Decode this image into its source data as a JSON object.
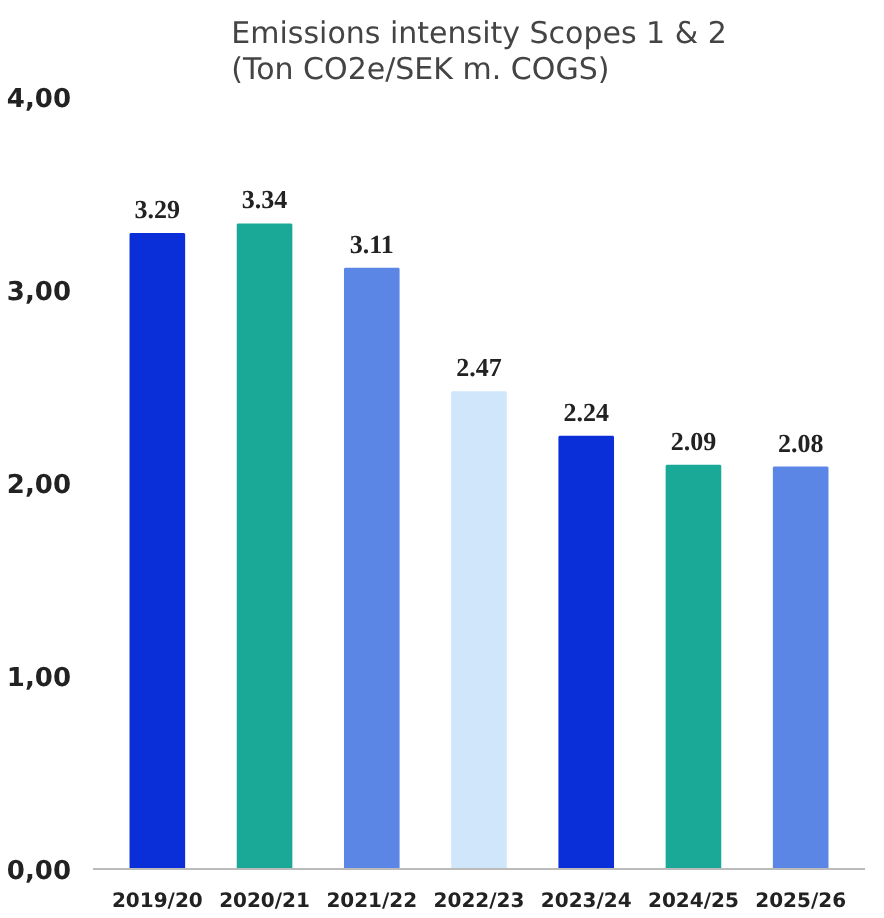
{
  "chart_data": {
    "type": "bar",
    "title": "Emissions intensity Scopes 1 & 2\n(Ton CO2e/SEK m. COGS)",
    "categories": [
      "2019/20",
      "2020/21",
      "2021/22",
      "2022/23",
      "2023/24",
      "2024/25",
      "2025/26"
    ],
    "values": [
      3.29,
      3.34,
      3.11,
      2.47,
      2.24,
      2.09,
      2.08
    ],
    "colors": [
      "#0a2ed8",
      "#1aa897",
      "#5b86e6",
      "#d0e6fb",
      "#0a2ed8",
      "#1aa897",
      "#5b86e6"
    ],
    "ylim": [
      0,
      4
    ],
    "yticks": [
      {
        "value": 0,
        "label": "0,00"
      },
      {
        "value": 1,
        "label": "1,00"
      },
      {
        "value": 2,
        "label": "2,00"
      },
      {
        "value": 3,
        "label": "3,00"
      },
      {
        "value": 4,
        "label": "4,00"
      }
    ],
    "grid": false,
    "data_labels": true
  }
}
